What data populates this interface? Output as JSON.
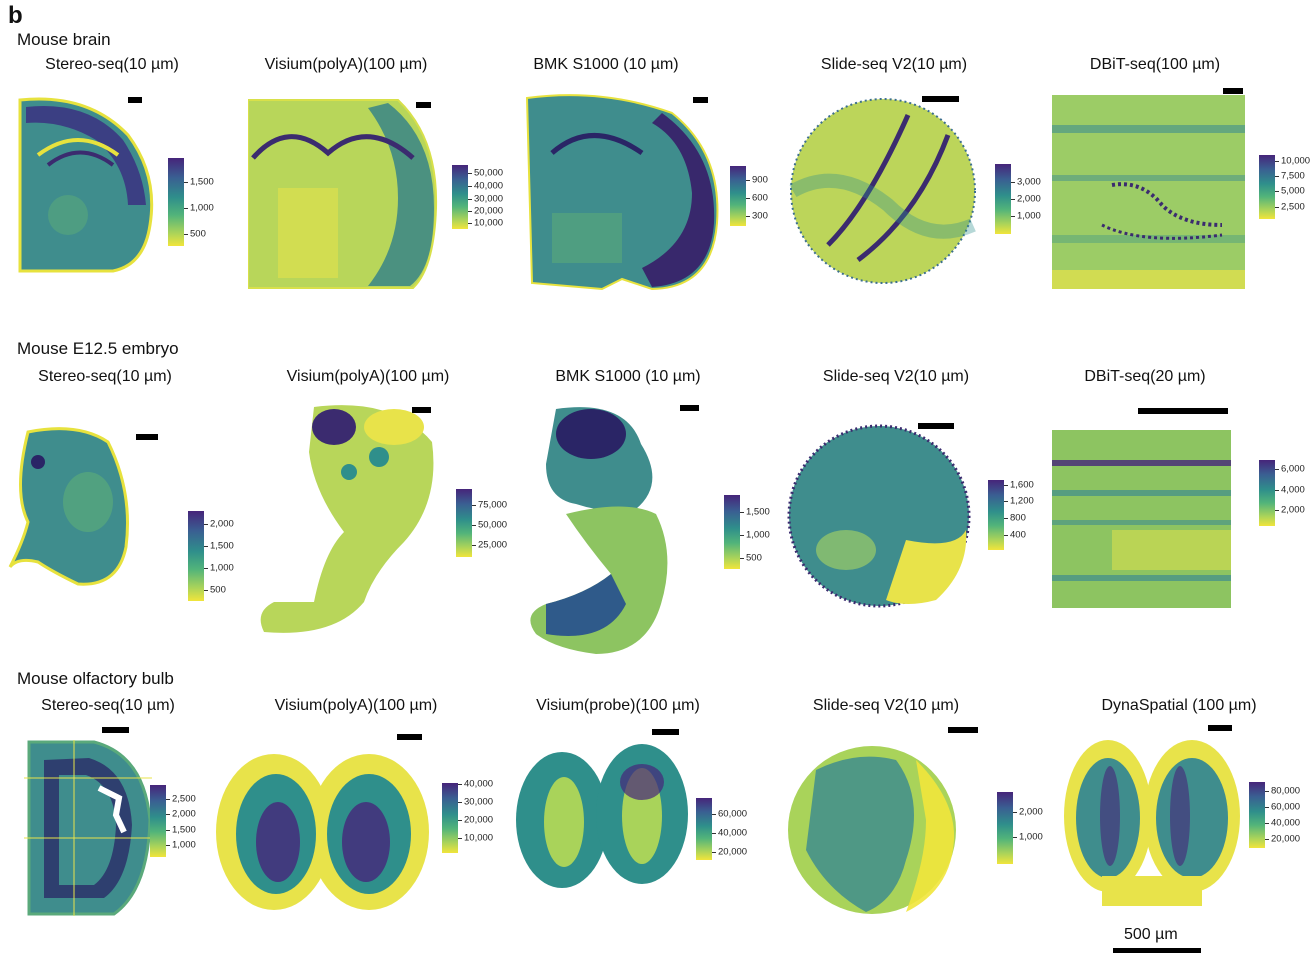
{
  "panel_letter": "b",
  "rows": [
    {
      "label": "Mouse brain",
      "panels": [
        {
          "title": "Stereo-seq(10 µm)",
          "colorbar": [
            "1,500",
            "1,000",
            "500"
          ]
        },
        {
          "title": "Visium(polyA)(100 µm)",
          "colorbar": [
            "50,000",
            "40,000",
            "30,000",
            "20,000",
            "10,000"
          ]
        },
        {
          "title": "BMK S1000 (10 µm)",
          "colorbar": [
            "900",
            "600",
            "300"
          ]
        },
        {
          "title": "Slide-seq V2(10 µm)",
          "colorbar": [
            "3,000",
            "2,000",
            "1,000"
          ]
        },
        {
          "title": "DBiT-seq(100 µm)",
          "colorbar": [
            "10,000",
            "7,500",
            "5,000",
            "2,500"
          ]
        }
      ]
    },
    {
      "label": "Mouse E12.5 embryo",
      "panels": [
        {
          "title": "Stereo-seq(10 µm)",
          "colorbar": [
            "2,000",
            "1,500",
            "1,000",
            "500"
          ]
        },
        {
          "title": "Visium(polyA)(100 µm)",
          "colorbar": [
            "75,000",
            "50,000",
            "25,000"
          ]
        },
        {
          "title": "BMK S1000 (10 µm)",
          "colorbar": [
            "1,500",
            "1,000",
            "500"
          ]
        },
        {
          "title": "Slide-seq V2(10 µm)",
          "colorbar": [
            "1,600",
            "1,200",
            "800",
            "400"
          ]
        },
        {
          "title": "DBiT-seq(20 µm)",
          "colorbar": [
            "6,000",
            "4,000",
            "2,000"
          ]
        }
      ]
    },
    {
      "label": "Mouse olfactory bulb",
      "panels": [
        {
          "title": "Stereo-seq(10 µm)",
          "colorbar": [
            "2,500",
            "2,000",
            "1,500",
            "1,000"
          ]
        },
        {
          "title": "Visium(polyA)(100 µm)",
          "colorbar": [
            "40,000",
            "30,000",
            "20,000",
            "10,000"
          ]
        },
        {
          "title": "Visium(probe)(100 µm)",
          "colorbar": [
            "60,000",
            "40,000",
            "20,000"
          ]
        },
        {
          "title": "Slide-seq V2(10 µm)",
          "colorbar": [
            "2,000",
            "1,000"
          ]
        },
        {
          "title": "DynaSpatial (100 µm)",
          "colorbar": [
            "80,000",
            "60,000",
            "40,000",
            "20,000"
          ]
        }
      ]
    }
  ],
  "bottom_scale_label": "500 µm",
  "palette": [
    "#46257a",
    "#3a5f92",
    "#2f8f8b",
    "#52b47a",
    "#a9d35a",
    "#f1e53b"
  ]
}
